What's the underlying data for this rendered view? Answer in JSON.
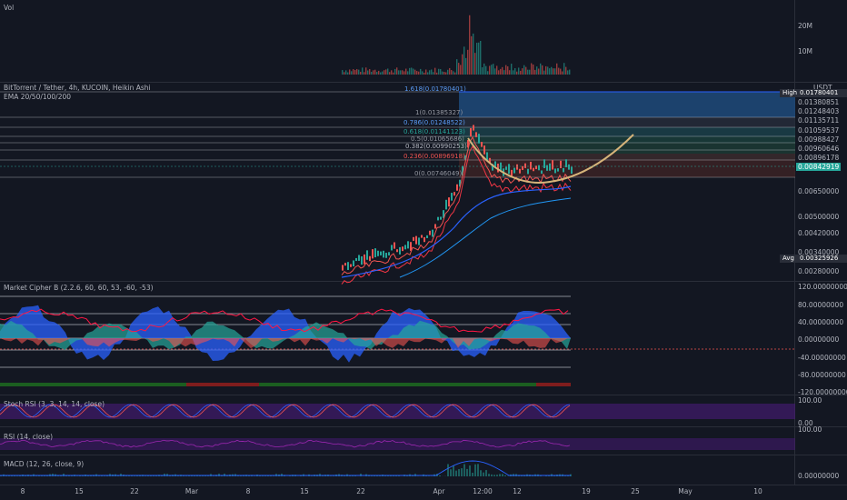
{
  "volume": {
    "title": "Vol",
    "axis": [
      "20M",
      "10M"
    ]
  },
  "main": {
    "symbol": "BitTorrent / Tether, 4h, KUCOIN, Heikin Ashi",
    "ema": "EMA 20/50/100/200",
    "currency": "USDT",
    "high_label": "High",
    "high_value": "0.01780401",
    "avg_label": "Avg",
    "avg_value": "0.00325926",
    "current_price": "0.00842919",
    "axis": [
      "0.01380851",
      "0.01248403",
      "0.01135711",
      "0.01059537",
      "0.00988427",
      "0.00960646",
      "0.00896178",
      "0.00650000",
      "0.00500000",
      "0.00420000",
      "0.00340000",
      "0.00280000"
    ],
    "fib": [
      {
        "label": "1.618(0.01780401)",
        "color": "#2962ff"
      },
      {
        "label": "1(0.01385327)",
        "color": "#787b86"
      },
      {
        "label": "0.786(0.01248522)",
        "color": "#2962ff"
      },
      {
        "label": "0.618(0.01141123)",
        "color": "#26a69a"
      },
      {
        "label": "0.5(0.01065686)",
        "color": "#787b86"
      },
      {
        "label": "0.382(0.00990253)",
        "color": "#b2b5be"
      },
      {
        "label": "0.236(0.00896918)",
        "color": "#ef5350"
      },
      {
        "label": "0(0.00746049)",
        "color": "#787b86"
      }
    ]
  },
  "market_cipher": {
    "title": "Market Cipher B (2.2.6, 60, 60, 53, -60, -53)",
    "axis": [
      "120.00000000",
      "80.00000000",
      "40.00000000",
      "0.00000000",
      "-40.00000000",
      "-80.00000000",
      "-120.00000000"
    ]
  },
  "stoch_rsi": {
    "title": "Stoch RSI (3, 3, 14, 14, close)",
    "axis": [
      "100.00",
      "0.00"
    ]
  },
  "rsi": {
    "title": "RSI (14, close)",
    "axis": [
      "100.00"
    ]
  },
  "macd": {
    "title": "MACD (12, 26, close, 9)",
    "axis": [
      "0.00000000"
    ]
  },
  "time_axis": [
    "8",
    "15",
    "22",
    "Mar",
    "8",
    "15",
    "22",
    "Apr",
    "12:00",
    "12",
    "19",
    "25",
    "May",
    "10"
  ],
  "colors": {
    "bg": "#131722",
    "up": "#26a69a",
    "down": "#ef5350",
    "cup": "#d6b47a",
    "ema_blue": "#2962ff"
  }
}
